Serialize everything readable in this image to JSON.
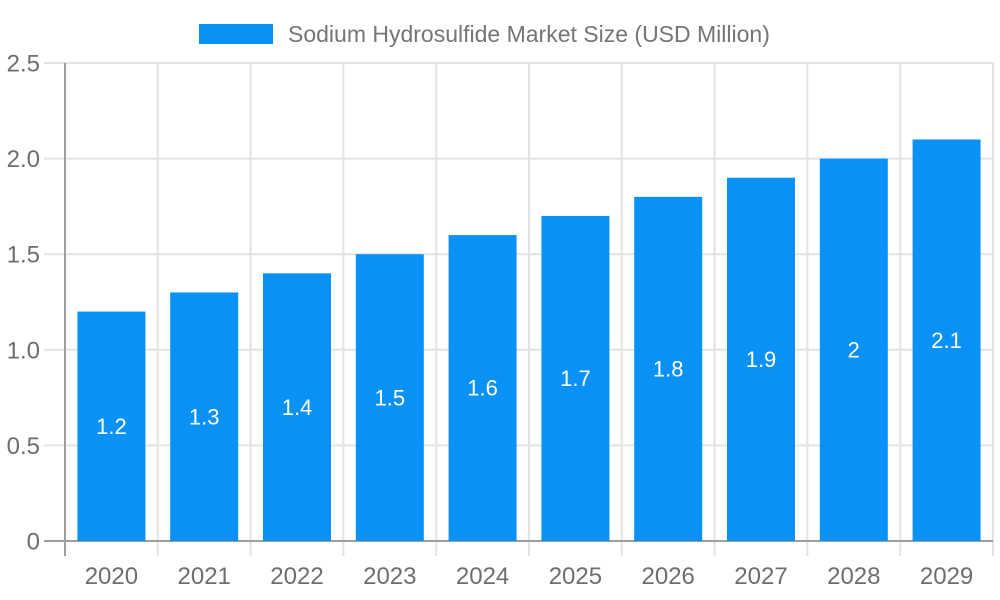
{
  "legend": {
    "label": "Sodium Hydrosulfide Market Size (USD Million)"
  },
  "chart_data": {
    "type": "bar",
    "title": "Sodium Hydrosulfide Market Size (USD Million)",
    "categories": [
      "2020",
      "2021",
      "2022",
      "2023",
      "2024",
      "2025",
      "2026",
      "2027",
      "2028",
      "2029"
    ],
    "values": [
      1.2,
      1.3,
      1.4,
      1.5,
      1.6,
      1.7,
      1.8,
      1.9,
      2,
      2.1
    ],
    "value_labels": [
      "1.2",
      "1.3",
      "1.4",
      "1.5",
      "1.6",
      "1.7",
      "1.8",
      "1.9",
      "2",
      "2.1"
    ],
    "xlabel": "",
    "ylabel": "",
    "ylim": [
      0,
      2.5
    ],
    "yticks": [
      0,
      0.5,
      1,
      1.5,
      2,
      2.5
    ],
    "ytick_labels": [
      "0",
      "0.5",
      "1.0",
      "1.5",
      "2.0",
      "2.5"
    ],
    "grid": true,
    "legend_position": "top-center",
    "colors": {
      "bar": "#0A91F5",
      "grid": "#E3E3E3",
      "axis": "#9E9E9E",
      "tick_label": "#6E6E6E",
      "legend_text": "#757575",
      "bar_label": "#FFFFFF",
      "background": "#FFFFFF"
    }
  }
}
